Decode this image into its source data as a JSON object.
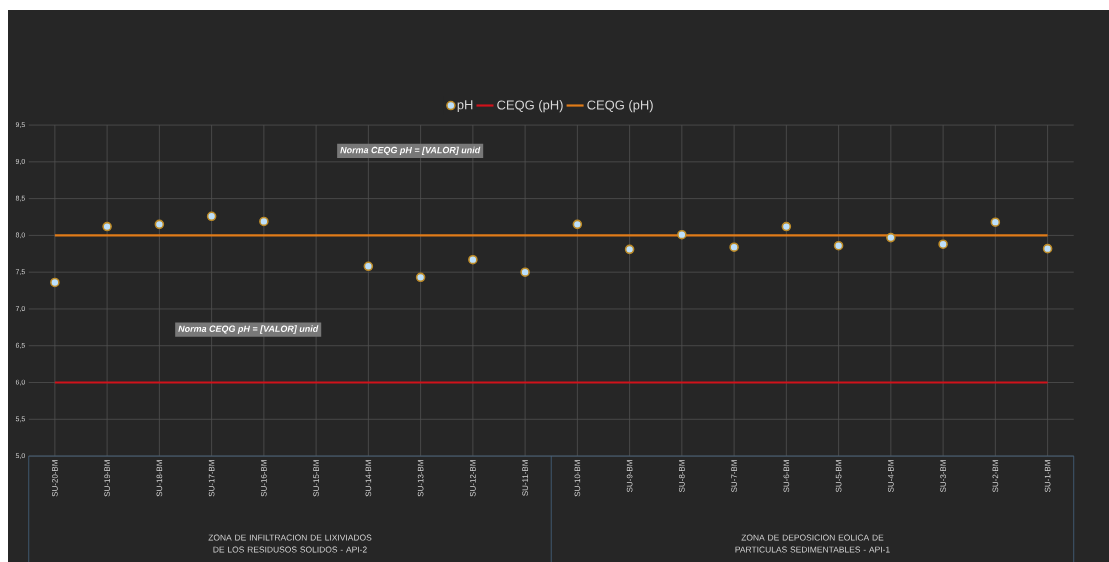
{
  "chart_data": {
    "type": "scatter",
    "categories": [
      "SU-20-BM",
      "SU-19-BM",
      "SU-18-BM",
      "SU-17-BM",
      "SU-16-BM",
      "SU-15-BM",
      "SU-14-BM",
      "SU-13-BM",
      "SU-12-BM",
      "SU-11-BM",
      "SU-10-BM",
      "SU-9-BM",
      "SU-8-BM",
      "SU-7-BM",
      "SU-6-BM",
      "SU-5-BM",
      "SU-4-BM",
      "SU-3-BM",
      "SU-2-BM",
      "SU-1-BM"
    ],
    "series": [
      {
        "name": "pH",
        "marker": "circle",
        "color": "#bde0fb",
        "values": [
          7.36,
          8.12,
          8.15,
          8.26,
          8.19,
          null,
          7.58,
          7.43,
          7.67,
          7.5,
          8.15,
          7.81,
          8.01,
          7.84,
          8.12,
          7.86,
          7.97,
          7.88,
          8.18,
          7.82
        ]
      },
      {
        "name": "CEQG (pH)",
        "type": "line",
        "marker": "none",
        "color": "#d0121b",
        "values": [
          6,
          6,
          6,
          6,
          6,
          6,
          6,
          6,
          6,
          6,
          6,
          6,
          6,
          6,
          6,
          6,
          6,
          6,
          6,
          6
        ]
      },
      {
        "name": "CEQG (pH)",
        "type": "line",
        "marker": "none",
        "color": "#e07b18",
        "values": [
          8,
          8,
          8,
          8,
          8,
          8,
          8,
          8,
          8,
          8,
          8,
          8,
          8,
          8,
          8,
          8,
          8,
          8,
          8,
          8
        ]
      }
    ],
    "ylim": [
      5,
      9.5
    ],
    "yticks": [
      {
        "value": 5,
        "label": "5,0"
      },
      {
        "value": 5.5,
        "label": "5,5"
      },
      {
        "value": 6,
        "label": "6,0"
      },
      {
        "value": 6.5,
        "label": "6,5"
      },
      {
        "value": 7,
        "label": "7,0"
      },
      {
        "value": 7.5,
        "label": "7,5"
      },
      {
        "value": 8,
        "label": "8,0"
      },
      {
        "value": 8.5,
        "label": "8,5"
      },
      {
        "value": 9,
        "label": "9,0"
      },
      {
        "value": 9.5,
        "label": "9,5"
      }
    ],
    "annotations": [
      "Norma CEQG  pH = [VALOR] unid",
      "Norma CEQG  pH = [VALOR] unid",
      "ZONA DE INFILTRACION DE LIXIVIADOS DE LOS RESIDUSOS SOLIDOS - API-2",
      "ZONA DE DEPOSICION EOLICA DE PARTICULAS SEDIMENTABLES - API-1"
    ],
    "grid": true,
    "legend": "top",
    "line_style": "solid"
  }
}
